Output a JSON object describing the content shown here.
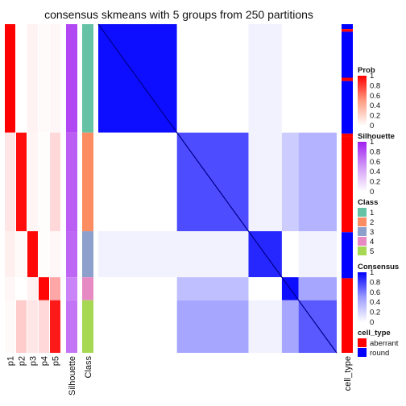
{
  "chart_data": {
    "type": "heatmap",
    "title": "consensus skmeans with 5 groups from 250 partitions",
    "columns": [
      "p1",
      "p2",
      "p3",
      "p4",
      "p5",
      "Silhouette",
      "Class"
    ],
    "right_column": "cell_type",
    "groups": [
      {
        "class": "1",
        "size_fraction": 0.33,
        "p": [
          1.0,
          0.0,
          0.05,
          0.02,
          0.03
        ],
        "silhouette": 0.82
      },
      {
        "class": "2",
        "size_fraction": 0.3,
        "p": [
          0.1,
          0.95,
          0.04,
          0.01,
          0.15
        ],
        "silhouette": 0.72
      },
      {
        "class": "3",
        "size_fraction": 0.14,
        "p": [
          0.06,
          0.02,
          0.97,
          0.01,
          0.03
        ],
        "silhouette": 0.68
      },
      {
        "class": "4",
        "size_fraction": 0.07,
        "p": [
          0.03,
          0.0,
          0.05,
          0.98,
          0.35
        ],
        "silhouette": 0.55
      },
      {
        "class": "5",
        "size_fraction": 0.16,
        "p": [
          0.02,
          0.2,
          0.1,
          0.15,
          0.9
        ],
        "silhouette": 0.62
      }
    ],
    "consensus_blocks": [
      [
        0.95,
        0.0,
        0.05,
        0.0,
        0.0
      ],
      [
        0.0,
        0.7,
        0.05,
        0.2,
        0.3
      ],
      [
        0.05,
        0.05,
        0.85,
        0.0,
        0.05
      ],
      [
        0.0,
        0.25,
        0.0,
        0.95,
        0.35
      ],
      [
        0.0,
        0.35,
        0.05,
        0.35,
        0.65
      ]
    ],
    "legends": [
      {
        "title": "Prob",
        "type": "gradient",
        "colors": [
          "#ffffff",
          "#ff0000"
        ],
        "ticks": [
          "1",
          "0.8",
          "0.6",
          "0.4",
          "0.2",
          "0"
        ]
      },
      {
        "title": "Silhouette",
        "type": "gradient",
        "colors": [
          "#ffffff",
          "#a020f0"
        ],
        "ticks": [
          "1",
          "0.8",
          "0.6",
          "0.4",
          "0.2",
          "0"
        ]
      },
      {
        "title": "Class",
        "type": "discrete",
        "items": [
          {
            "label": "1",
            "color": "#66c2a5"
          },
          {
            "label": "2",
            "color": "#fc8d62"
          },
          {
            "label": "3",
            "color": "#8da0cb"
          },
          {
            "label": "4",
            "color": "#e78ac3"
          },
          {
            "label": "5",
            "color": "#a6d854"
          }
        ]
      },
      {
        "title": "Consensus",
        "type": "gradient",
        "colors": [
          "#ffffff",
          "#0000ff"
        ],
        "ticks": [
          "1",
          "0.8",
          "0.6",
          "0.4",
          "0.2",
          "0"
        ]
      },
      {
        "title": "cell_type",
        "type": "discrete",
        "items": [
          {
            "label": "aberrant",
            "color": "#ff0000"
          },
          {
            "label": "round",
            "color": "#0000ff"
          }
        ]
      }
    ],
    "cell_type_bands": [
      {
        "fraction": 0.015,
        "type": "round"
      },
      {
        "fraction": 0.008,
        "type": "aberrant"
      },
      {
        "fraction": 0.14,
        "type": "round"
      },
      {
        "fraction": 0.01,
        "type": "aberrant"
      },
      {
        "fraction": 0.16,
        "type": "round"
      },
      {
        "fraction": 0.01,
        "type": "aberrant"
      },
      {
        "fraction": 0.29,
        "type": "aberrant"
      },
      {
        "fraction": 0.14,
        "type": "round"
      },
      {
        "fraction": 0.227,
        "type": "aberrant"
      }
    ]
  }
}
